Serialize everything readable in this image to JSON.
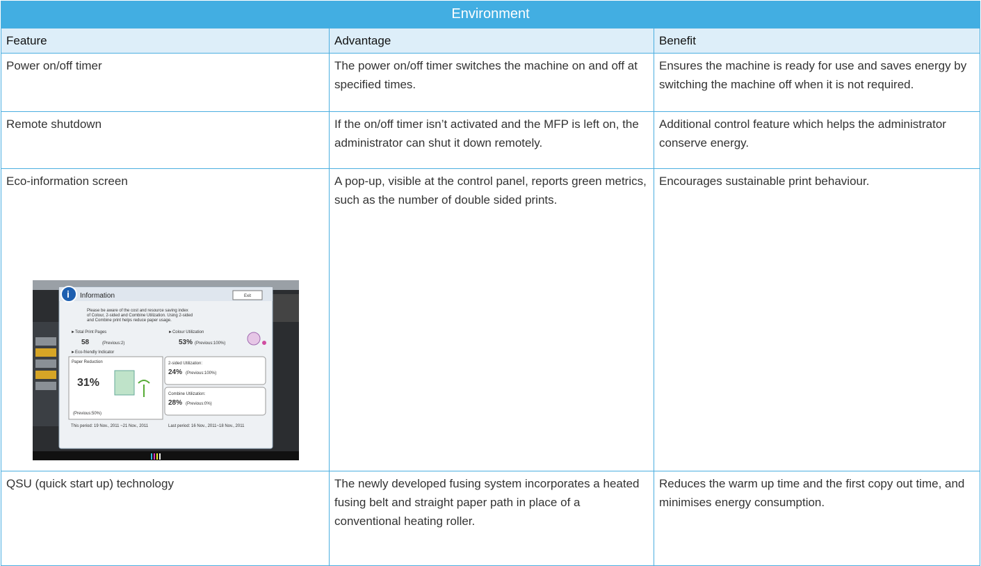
{
  "header": {
    "title": "Environment"
  },
  "table": {
    "columns": [
      "Feature",
      "Advantage",
      "Benefit"
    ],
    "rows": [
      [
        "Power on/off timer",
        "The power on/off timer switches the machine on and off at specified times.",
        "Ensures the machine is ready for use and saves energy by switching the machine off when it is not required."
      ],
      [
        "Remote shutdown",
        "If the on/off timer isn’t activated and the MFP is left on, the administrator can shut it down remotely.",
        "Additional control feature which helps the administrator conserve energy."
      ],
      [
        "Eco-information screen",
        "A pop-up, visible at the control panel, reports green metrics, such as the number of double sided prints.",
        "Encourages sustainable print behaviour."
      ],
      [
        "QSU (quick start up) technology",
        "The newly developed fusing system incorporates a heated fusing belt and straight paper path in place of a conventional heating roller.",
        "Reduces the warm up time and the first copy out time, and minimises energy consumption."
      ]
    ]
  },
  "screenshot": {
    "title": "Information",
    "exit": "Exit",
    "intro": [
      "Please be aware of the cost and resource saving index",
      "of Colour, 2-sided and Combine Utilization. Using 2-sided",
      "and Combine print helps reduce paper usage."
    ],
    "total_label": "►Total Print Pages",
    "total_value": "58",
    "total_prev": "(Previous:2)",
    "colour_label": "►Colour Utilization",
    "colour_value": "53%",
    "colour_prev": "(Previous:100%)",
    "eco_label": "►Eco-friendly Indicator",
    "paper_label": "Paper Reduction",
    "paper_value": "31%",
    "paper_prev": "(Previous:50%)",
    "duplex_label": "2-sided Utilization:",
    "duplex_value": "24%",
    "duplex_prev": "(Previous:100%)",
    "combine_label": "Combine Utilization:",
    "combine_value": "28%",
    "combine_prev": "(Previous:0%)",
    "this_period": "This period: 19 Nov., 2011 ~21 Nov., 2011",
    "last_period": "Last period: 16 Nov., 2011~18 Nov., 2011"
  }
}
